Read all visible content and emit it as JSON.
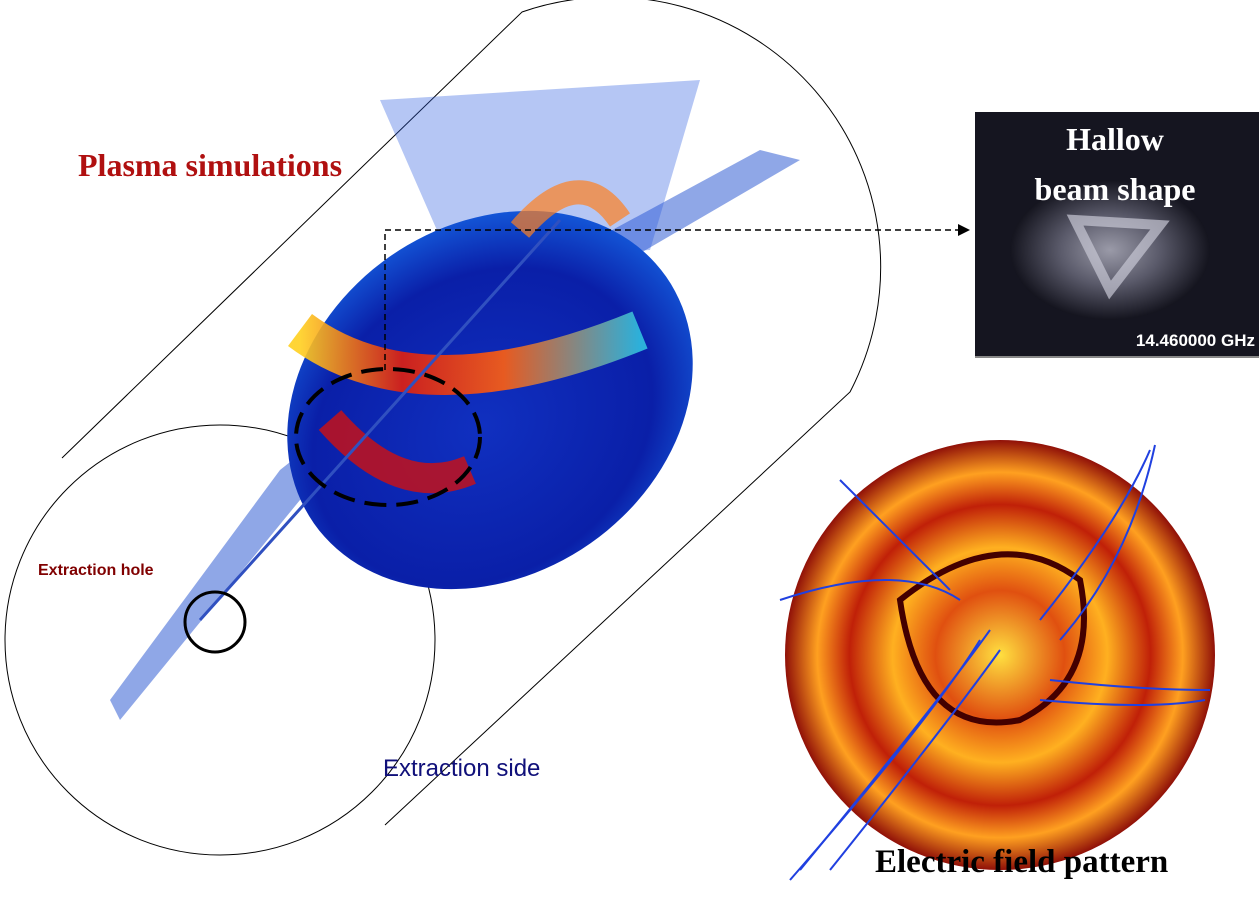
{
  "title": "Plasma simulations",
  "beam_image": {
    "title_line1": "Hallow",
    "title_line2": "beam shape",
    "frequency": "14.460000 GHz"
  },
  "extraction_hole": "Extraction hole",
  "extraction_side": "Extraction side",
  "field_caption": "Electric field pattern"
}
